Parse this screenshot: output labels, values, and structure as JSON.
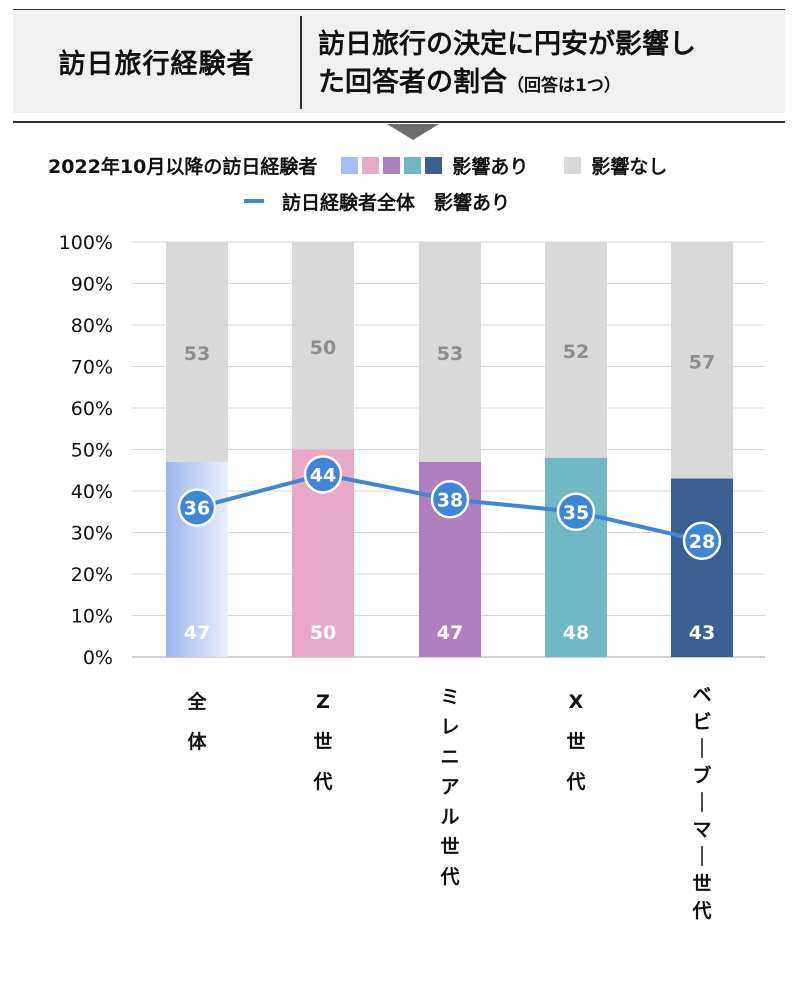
{
  "header": {
    "left_title": "訪日旅行経験者",
    "right_title_line1": "訪日旅行の決定に円安が影響し",
    "right_title_line2": "た回答者の割合",
    "right_title_note": "（回答は1つ）"
  },
  "legend": {
    "group_label": "2022年10月以降の訪日経験者",
    "affected_label": "影響あり",
    "not_affected_label": "影響なし",
    "line_label": "訪日経験者全体　影響あり",
    "swatch_colors": [
      "#a5bdf0",
      "#e8a8c8",
      "#b07fbd",
      "#6fb8c4",
      "#3a5f93"
    ],
    "not_affected_color": "#d9d9d9",
    "line_color": "#3f86d8"
  },
  "chart_data": {
    "type": "bar",
    "stacked": true,
    "categories": [
      "全体",
      "Z世代",
      "ミレニアル世代",
      "X世代",
      "ベビーブーマー世代"
    ],
    "series": [
      {
        "name": "影響あり",
        "values": [
          47,
          50,
          47,
          48,
          43
        ],
        "colors": [
          "#a5bdf0",
          "#e8a8c8",
          "#b07fbd",
          "#6fb8c4",
          "#3a5f93"
        ]
      },
      {
        "name": "影響なし",
        "values": [
          53,
          50,
          53,
          52,
          57
        ],
        "color": "#d9d9d9"
      }
    ],
    "line_series": {
      "name": "訪日経験者全体　影響あり",
      "values": [
        36,
        44,
        38,
        35,
        28
      ],
      "color": "#3f86d8"
    },
    "ylim": [
      0,
      100
    ],
    "yticks": [
      "0%",
      "10%",
      "20%",
      "30%",
      "40%",
      "50%",
      "60%",
      "70%",
      "80%",
      "90%",
      "100%"
    ],
    "gridlines": true
  }
}
